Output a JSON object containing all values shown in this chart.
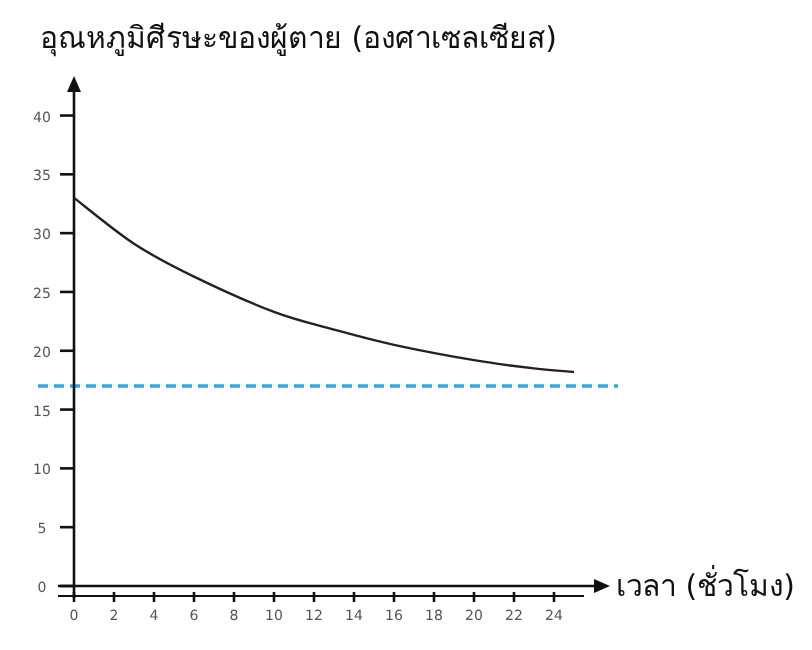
{
  "chart_data": {
    "type": "line",
    "ylabel": "อุณหภูมิศีรษะของผู้ตาย (องศาเซลเซียส)",
    "xlabel": "เวลา (ชั่วโมง)",
    "x": [
      0,
      3,
      6,
      10,
      13,
      16,
      20,
      23,
      25
    ],
    "series": [
      {
        "color": "#222222",
        "values": [
          33,
          29.1,
          26.3,
          23.3,
          21.8,
          20.5,
          19.2,
          18.5,
          18.2
        ]
      }
    ],
    "xlim": [
      0,
      26
    ],
    "ylim": [
      0,
      42
    ],
    "xticks": [
      0,
      2,
      4,
      6,
      8,
      10,
      12,
      14,
      16,
      18,
      20,
      22,
      24
    ],
    "yticks": [
      0,
      5,
      10,
      15,
      20,
      25,
      30,
      35,
      40
    ],
    "ref_lines": [
      {
        "axis": "y",
        "value": 17,
        "color": "#29abe2",
        "line_style": "dashed"
      }
    ],
    "grid": false,
    "marker": "none",
    "line_style": "solid"
  }
}
